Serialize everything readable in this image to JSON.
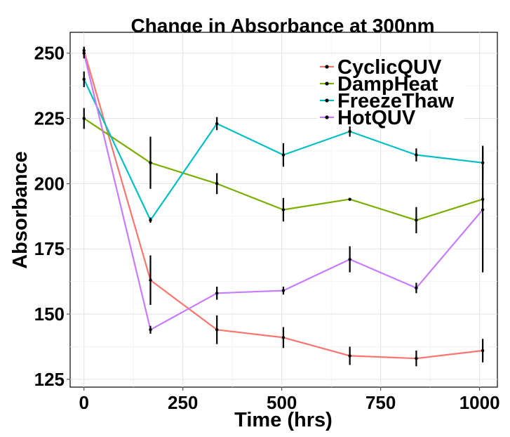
{
  "chart_data": {
    "type": "line",
    "title": "Change in Absorbance at 300nm",
    "xlabel": "Time (hrs)",
    "ylabel": "Absorbance",
    "xlim": [
      -35,
      1045
    ],
    "ylim": [
      122,
      258
    ],
    "x_ticks": [
      0,
      250,
      500,
      750,
      1000
    ],
    "y_ticks": [
      125,
      150,
      175,
      200,
      225,
      250
    ],
    "grid": true,
    "legend_position": "top-right",
    "x": [
      0,
      168,
      336,
      504,
      672,
      840,
      1008
    ],
    "series": [
      {
        "name": "CyclicQUV",
        "color": "#F8766D",
        "values": [
          251,
          163,
          144,
          141,
          134,
          133,
          136
        ],
        "error": [
          1.5,
          9.5,
          5.5,
          4,
          3.5,
          3,
          4.5
        ]
      },
      {
        "name": "DampHeat",
        "color": "#7CAE00",
        "values": [
          225,
          208,
          200,
          190,
          194,
          186,
          194
        ],
        "error": [
          4,
          10,
          4,
          4.5,
          0.5,
          5,
          1.5
        ]
      },
      {
        "name": "FreezeThaw",
        "color": "#00BFC4",
        "values": [
          240,
          186,
          223,
          211,
          220,
          211,
          208
        ],
        "error": [
          3,
          1,
          2.5,
          4.5,
          2,
          2.5,
          6.5
        ]
      },
      {
        "name": "HotQUV",
        "color": "#C77CFF",
        "values": [
          250,
          144,
          158,
          159,
          171,
          160,
          190
        ],
        "error": [
          2,
          1.5,
          2.5,
          1.5,
          5,
          2,
          24
        ]
      }
    ]
  }
}
